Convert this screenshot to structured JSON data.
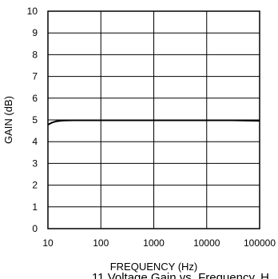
{
  "chart_data": {
    "type": "line",
    "xlabel": "FREQUENCY (Hz)",
    "ylabel": "GAIN (dB)",
    "x_scale": "log",
    "xlim": [
      10,
      100000
    ],
    "ylim": [
      0,
      10
    ],
    "grid": true,
    "x_ticks": [
      "10",
      "100",
      "1000",
      "10000",
      "100000"
    ],
    "y_ticks": [
      "0",
      "1",
      "2",
      "3",
      "4",
      "5",
      "6",
      "7",
      "8",
      "9",
      "10"
    ],
    "series": [
      {
        "x": [
          10,
          12,
          14,
          17,
          20,
          30,
          50,
          100,
          300,
          1000,
          3000,
          10000,
          30000,
          100000
        ],
        "y": [
          4.78,
          4.88,
          4.93,
          4.96,
          4.97,
          4.98,
          4.98,
          4.98,
          4.98,
          4.98,
          4.98,
          4.98,
          4.98,
          4.96
        ]
      }
    ],
    "caption": "11 Voltage Gain vs. Frequency, H"
  }
}
